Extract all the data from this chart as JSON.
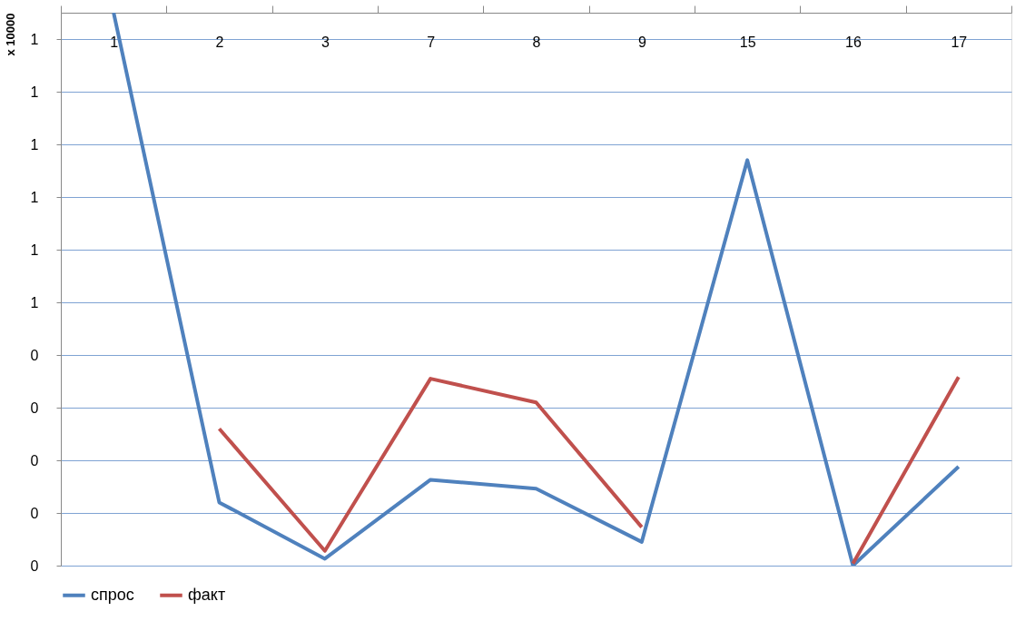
{
  "chart_data": {
    "type": "line",
    "ylabel": "x 10000",
    "categories": [
      "1",
      "2",
      "3",
      "7",
      "8",
      "9",
      "15",
      "16",
      "17"
    ],
    "series": [
      {
        "name": "спрос",
        "color": "#4f81bd",
        "values": [
          1.05,
          0.12,
          0.013,
          0.163,
          0.146,
          0.045,
          0.77,
          0,
          0.188
        ]
      },
      {
        "name": "факт",
        "color": "#c0504d",
        "values": [
          null,
          0.26,
          0.028,
          0.355,
          0.31,
          0.073,
          null,
          0.004,
          0.358
        ]
      }
    ],
    "ylim": [
      0,
      1.05
    ],
    "yticks": [
      {
        "value": 0,
        "label": "0"
      },
      {
        "value": 0.1,
        "label": "0"
      },
      {
        "value": 0.2,
        "label": "0"
      },
      {
        "value": 0.3,
        "label": "0"
      },
      {
        "value": 0.4,
        "label": "0"
      },
      {
        "value": 0.5,
        "label": "1"
      },
      {
        "value": 0.6,
        "label": "1"
      },
      {
        "value": 0.7,
        "label": "1"
      },
      {
        "value": 0.8,
        "label": "1"
      },
      {
        "value": 0.9,
        "label": "1"
      },
      {
        "value": 1.0,
        "label": "1"
      }
    ],
    "grid": "y",
    "legend": "bottom",
    "marker": "none",
    "line_style": "solid"
  }
}
